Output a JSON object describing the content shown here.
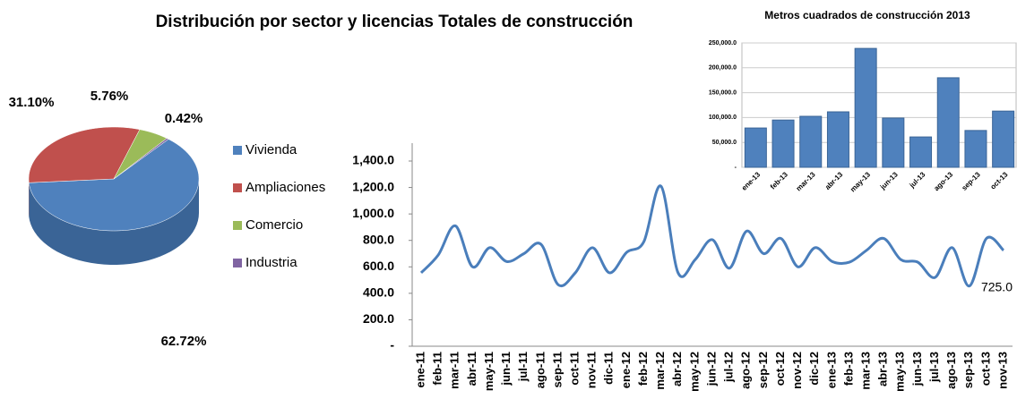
{
  "chart_data": [
    {
      "type": "pie",
      "title": "Distribución por sector y licencias Totales de construcción",
      "categories": [
        "Vivienda",
        "Ampliaciones",
        "Comercio",
        "Industria"
      ],
      "values": [
        62.72,
        31.1,
        5.76,
        0.42
      ],
      "value_labels": [
        "62.72%",
        "31.10%",
        "5.76%",
        "0.42%"
      ],
      "colors": [
        "#4f81bd",
        "#c0504d",
        "#9bbb59",
        "#8064a2"
      ],
      "legend": "right"
    },
    {
      "type": "line",
      "categories": [
        "ene-11",
        "feb-11",
        "mar-11",
        "abr-11",
        "may-11",
        "jun-11",
        "jul-11",
        "ago-11",
        "sep-11",
        "oct-11",
        "nov-11",
        "dic-11",
        "ene-12",
        "feb-12",
        "mar-12",
        "abr-12",
        "may-12",
        "jun-12",
        "jul-12",
        "ago-12",
        "sep-12",
        "oct-12",
        "nov-12",
        "dic-12",
        "ene-13",
        "feb-13",
        "mar-13",
        "abr-13",
        "may-13",
        "jun-13",
        "jul-13",
        "ago-13",
        "sep-13",
        "oct-13",
        "nov-13"
      ],
      "series": [
        {
          "color": "#4a7ebb",
          "values": [
            555,
            690,
            910,
            600,
            745,
            640,
            700,
            770,
            465,
            555,
            745,
            555,
            710,
            790,
            1210,
            555,
            655,
            805,
            590,
            870,
            700,
            815,
            600,
            745,
            640,
            635,
            725,
            815,
            655,
            635,
            520,
            745,
            455,
            815,
            725
          ],
          "value_labels": [
            null,
            null,
            null,
            null,
            null,
            null,
            null,
            null,
            null,
            null,
            null,
            null,
            null,
            null,
            null,
            null,
            null,
            null,
            null,
            null,
            null,
            null,
            null,
            null,
            null,
            null,
            null,
            null,
            null,
            null,
            null,
            null,
            null,
            null,
            "725.0"
          ]
        }
      ],
      "ylim": [
        0,
        1400
      ],
      "yticks": [
        {
          "value": 0,
          "label": "-"
        },
        {
          "value": 200,
          "label": "200.0"
        },
        {
          "value": 400,
          "label": "400.0"
        },
        {
          "value": 600,
          "label": "600.0"
        },
        {
          "value": 800,
          "label": "800.0"
        },
        {
          "value": 1000,
          "label": "1,000.0"
        },
        {
          "value": 1200,
          "label": "1,200.0"
        },
        {
          "value": 1400,
          "label": "1,400.0"
        }
      ],
      "grid": false
    },
    {
      "type": "bar",
      "title": "Metros cuadrados de construcción 2013",
      "categories": [
        "ene-13",
        "feb-13",
        "mar-13",
        "abr-13",
        "may-13",
        "jun-13",
        "jul-13",
        "ago-13",
        "sep-13",
        "oct-13"
      ],
      "values": [
        79000,
        95000,
        102500,
        111500,
        239000,
        99000,
        61000,
        180000,
        74000,
        113000
      ],
      "color": "#4f81bd",
      "ylim": [
        0,
        250000
      ],
      "yticks": [
        {
          "value": 0,
          "label": "-"
        },
        {
          "value": 50000,
          "label": "50,000.0"
        },
        {
          "value": 100000,
          "label": "100,000.0"
        },
        {
          "value": 150000,
          "label": "150,000.0"
        },
        {
          "value": 200000,
          "label": "200,000.0"
        },
        {
          "value": 250000,
          "label": "250,000.0"
        }
      ],
      "grid": true
    }
  ]
}
